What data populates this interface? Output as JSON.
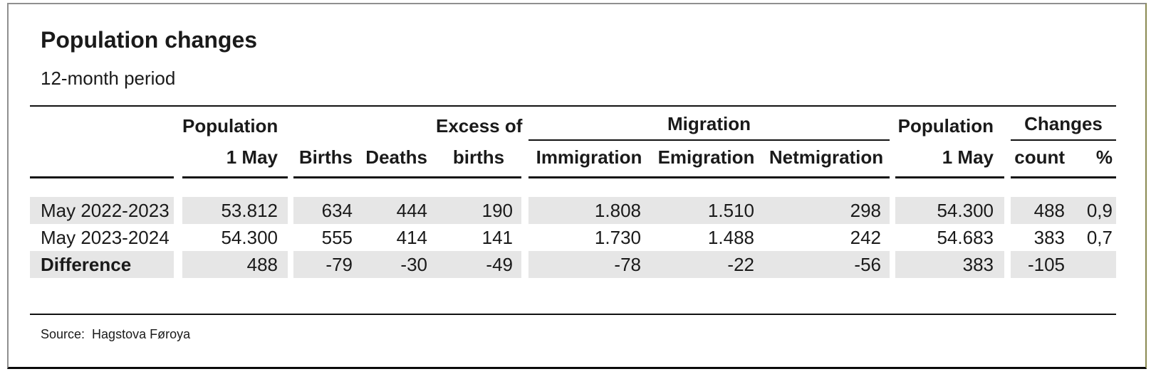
{
  "header": {
    "title": "Population changes",
    "subtitle": "12-month period"
  },
  "table_display": {
    "groups": {
      "migration": "Migration",
      "changes": "Changes"
    },
    "labels": {
      "pop_l1": "Population",
      "pop_l2": "1 May",
      "births": "Births",
      "deaths": "Deaths",
      "excess_l1": "Excess of",
      "excess_l2": "births",
      "immigration": "Immigration",
      "emigration": "Emigration",
      "netmigration": "Netmigration",
      "pop2_l1": "Population",
      "pop2_l2": "1 May",
      "count": "count",
      "pct": "%"
    }
  },
  "chart_data": {
    "type": "table",
    "title": "Population changes",
    "subtitle": "12-month period",
    "column_groups": [
      {
        "label": "Migration",
        "spans": [
          "Immigration",
          "Emigration",
          "Netmigration"
        ]
      },
      {
        "label": "Changes",
        "spans": [
          "count",
          "%"
        ]
      }
    ],
    "columns": [
      "",
      "Population 1 May",
      "Births",
      "Deaths",
      "Excess of births",
      "Immigration",
      "Emigration",
      "Netmigration",
      "Population 1 May",
      "count",
      "%"
    ],
    "rows": [
      [
        "May 2022-2023",
        "53.812",
        "634",
        "444",
        "190",
        "1.808",
        "1.510",
        "298",
        "54.300",
        "488",
        "0,9"
      ],
      [
        "May 2023-2024",
        "54.300",
        "555",
        "414",
        "141",
        "1.730",
        "1.488",
        "242",
        "54.683",
        "383",
        "0,7"
      ],
      [
        "Difference",
        "488",
        "-79",
        "-30",
        "-49",
        "-78",
        "-22",
        "-56",
        "383",
        "-105",
        ""
      ]
    ],
    "source": "Hagstova Føroya",
    "number_format": "thousands separator '.', decimal comma"
  },
  "footer": {
    "source_label": "Source:",
    "source_value": "Hagstova Føroya"
  },
  "colors": {
    "row_shade": "#e6e6e6",
    "text": "#1a1a1a",
    "rule": "#111111",
    "frame_gray": "#8f8f8f",
    "frame_right_olive": "#8a8a52",
    "frame_bottom_black": "#0a0a0a"
  }
}
